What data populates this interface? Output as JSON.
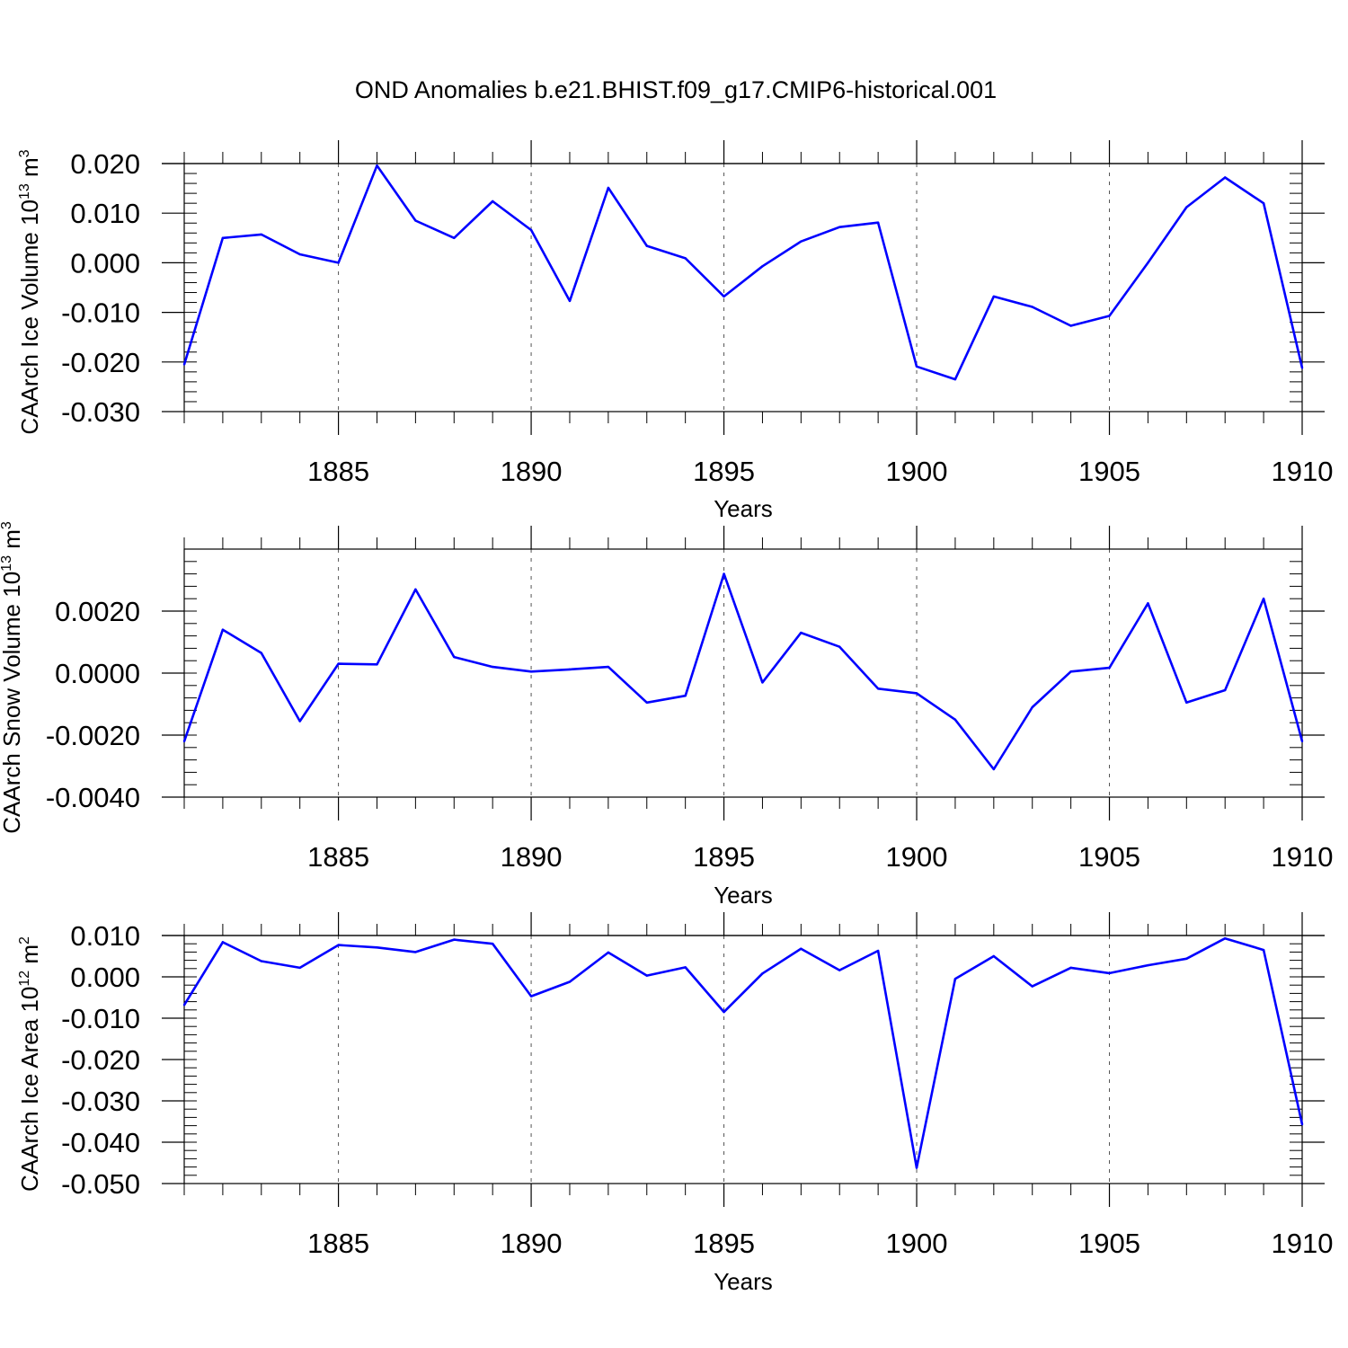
{
  "figure_title": "OND Anomalies b.e21.BHIST.f09_g17.CMIP6-historical.001",
  "colors": {
    "series_line": "#0000ff",
    "axis": "#000000",
    "grid": "#555555"
  },
  "chart_data": [
    {
      "type": "line",
      "title": "OND Anomalies b.e21.BHIST.f09_g17.CMIP6-historical.001",
      "xlabel": "Years",
      "ylabel": "CAArch Ice Volume 10",
      "ylabel_exp": "13",
      "ylabel_unit": " m",
      "ylabel_unit_exp": "3",
      "xlim": [
        1881,
        1910
      ],
      "ylim": [
        -0.03,
        0.02
      ],
      "x_ticks": [
        1885,
        1890,
        1895,
        1900,
        1905,
        1910
      ],
      "x_ticklabels": [
        "1885",
        "1890",
        "1895",
        "1900",
        "1905",
        "1910"
      ],
      "y_ticks": [
        0.02,
        0.01,
        0.0,
        -0.01,
        -0.02,
        -0.03
      ],
      "y_ticklabels": [
        "0.020",
        "0.010",
        "0.000",
        "-0.010",
        "-0.020",
        "-0.030"
      ],
      "y_minor_step": 0.002,
      "x_grid": [
        1885,
        1890,
        1895,
        1900,
        1905
      ],
      "zero_line": 0.02,
      "series": [
        {
          "name": "Ice Volume",
          "x": [
            1881,
            1882,
            1883,
            1884,
            1885,
            1886,
            1887,
            1888,
            1889,
            1890,
            1891,
            1892,
            1893,
            1894,
            1895,
            1896,
            1897,
            1898,
            1899,
            1900,
            1901,
            1902,
            1903,
            1904,
            1905,
            1906,
            1907,
            1908,
            1909,
            1910
          ],
          "values": [
            -0.0205,
            0.005,
            0.0057,
            0.0017,
            0.0,
            0.0196,
            0.0085,
            0.005,
            0.0124,
            0.0066,
            -0.0077,
            0.0151,
            0.0034,
            0.0009,
            -0.0068,
            -0.0007,
            0.0043,
            0.0072,
            0.0081,
            -0.0209,
            -0.0235,
            -0.0068,
            -0.0089,
            -0.0127,
            -0.0107,
            0.0,
            0.0112,
            0.0172,
            0.012,
            -0.0212
          ]
        }
      ]
    },
    {
      "type": "line",
      "xlabel": "Years",
      "ylabel": "CAArch Snow Volume 10",
      "ylabel_exp": "13",
      "ylabel_unit": " m",
      "ylabel_unit_exp": "3",
      "xlim": [
        1881,
        1910
      ],
      "ylim": [
        -0.004,
        0.004
      ],
      "x_ticks": [
        1885,
        1890,
        1895,
        1900,
        1905,
        1910
      ],
      "x_ticklabels": [
        "1885",
        "1890",
        "1895",
        "1900",
        "1905",
        "1910"
      ],
      "y_ticks": [
        0.002,
        0.0,
        -0.002,
        -0.004
      ],
      "y_ticklabels": [
        "0.0020",
        "0.0000",
        "-0.0020",
        "-0.0040"
      ],
      "y_minor_step": 0.0004,
      "x_grid": [
        1885,
        1890,
        1895,
        1900,
        1905
      ],
      "zero_line": null,
      "series": [
        {
          "name": "Snow Volume",
          "x": [
            1881,
            1882,
            1883,
            1884,
            1885,
            1886,
            1887,
            1888,
            1889,
            1890,
            1891,
            1892,
            1893,
            1894,
            1895,
            1896,
            1897,
            1898,
            1899,
            1900,
            1901,
            1902,
            1903,
            1904,
            1905,
            1906,
            1907,
            1908,
            1909,
            1910
          ],
          "values": [
            -0.0022,
            0.0014,
            0.00065,
            -0.00155,
            0.0003,
            0.00028,
            0.0027,
            0.00052,
            0.0002,
            5e-05,
            0.00012,
            0.0002,
            -0.00095,
            -0.00073,
            0.0032,
            -0.0003,
            0.0013,
            0.00085,
            -0.0005,
            -0.00065,
            -0.0015,
            -0.0031,
            -0.0011,
            5e-05,
            0.00017,
            0.00225,
            -0.00095,
            -0.00055,
            0.0024,
            -0.0022
          ]
        }
      ]
    },
    {
      "type": "line",
      "xlabel": "Years",
      "ylabel": "CAArch Ice Area 10",
      "ylabel_exp": "12",
      "ylabel_unit": " m",
      "ylabel_unit_exp": "2",
      "xlim": [
        1881,
        1910
      ],
      "ylim": [
        -0.05,
        0.01
      ],
      "x_ticks": [
        1885,
        1890,
        1895,
        1900,
        1905,
        1910
      ],
      "x_ticklabels": [
        "1885",
        "1890",
        "1895",
        "1900",
        "1905",
        "1910"
      ],
      "y_ticks": [
        0.01,
        0.0,
        -0.01,
        -0.02,
        -0.03,
        -0.04,
        -0.05
      ],
      "y_ticklabels": [
        "0.010",
        "0.000",
        "-0.010",
        "-0.020",
        "-0.030",
        "-0.040",
        "-0.050"
      ],
      "y_minor_step": 0.002,
      "x_grid": [
        1885,
        1890,
        1895,
        1900,
        1905
      ],
      "zero_line": 0.01,
      "series": [
        {
          "name": "Ice Area",
          "x": [
            1881,
            1882,
            1883,
            1884,
            1885,
            1886,
            1887,
            1888,
            1889,
            1890,
            1891,
            1892,
            1893,
            1894,
            1895,
            1896,
            1897,
            1898,
            1899,
            1900,
            1901,
            1902,
            1903,
            1904,
            1905,
            1906,
            1907,
            1908,
            1909,
            1910
          ],
          "values": [
            -0.0068,
            0.0084,
            0.0038,
            0.0022,
            0.0077,
            0.0071,
            0.006,
            0.009,
            0.008,
            -0.0047,
            -0.0012,
            0.0059,
            0.0003,
            0.0023,
            -0.0085,
            0.0008,
            0.0068,
            0.0016,
            0.0063,
            -0.0462,
            -0.0005,
            0.005,
            -0.0023,
            0.0022,
            0.0009,
            0.0028,
            0.0044,
            0.0093,
            0.0065,
            -0.0357
          ]
        }
      ]
    }
  ]
}
